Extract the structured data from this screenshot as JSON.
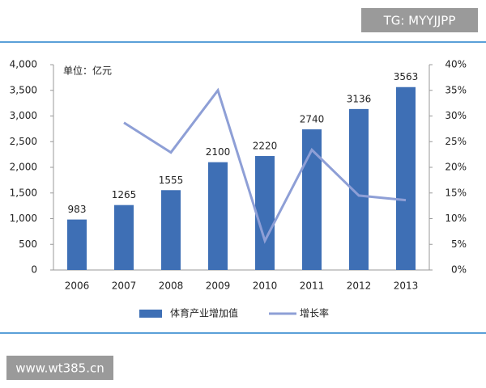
{
  "watermarks": {
    "top": "TG: MYYJJPP",
    "bottom": "www.wt385.cn"
  },
  "chart_data": {
    "type": "bar",
    "unit_label": "单位：亿元",
    "categories": [
      "2006",
      "2007",
      "2008",
      "2009",
      "2010",
      "2011",
      "2012",
      "2013"
    ],
    "series": [
      {
        "name": "体育产业增加值",
        "type": "bar",
        "axis": "y",
        "color": "#3e6fb5",
        "values": [
          983,
          1265,
          1555,
          2100,
          2220,
          2740,
          3136,
          3563
        ]
      },
      {
        "name": "增长率",
        "type": "line",
        "axis": "y2",
        "color": "#8e9fd6",
        "values": [
          null,
          28.7,
          22.9,
          35.0,
          5.7,
          23.4,
          14.5,
          13.6
        ]
      }
    ],
    "ylim": [
      0,
      4000
    ],
    "yticks": [
      0,
      500,
      {
        "value": 1000,
        "label": "1,000"
      },
      {
        "value": 1500,
        "label": "1,500"
      },
      {
        "value": 2000,
        "label": "2,000"
      },
      {
        "value": 2500,
        "label": "2,500"
      },
      {
        "value": 3000,
        "label": "3,000"
      },
      {
        "value": 3500,
        "label": "3,500"
      },
      {
        "value": 4000,
        "label": "4,000"
      }
    ],
    "y2lim": [
      0,
      40
    ],
    "y2ticks": [
      {
        "value": 0,
        "label": "0%"
      },
      {
        "value": 5,
        "label": "5%"
      },
      {
        "value": 10,
        "label": "10%"
      },
      {
        "value": 15,
        "label": "15%"
      },
      {
        "value": 20,
        "label": "20%"
      },
      {
        "value": 25,
        "label": "25%"
      },
      {
        "value": 30,
        "label": "30%"
      },
      {
        "value": 35,
        "label": "35%"
      },
      {
        "value": 40,
        "label": "40%"
      }
    ],
    "legend": "bottom"
  }
}
